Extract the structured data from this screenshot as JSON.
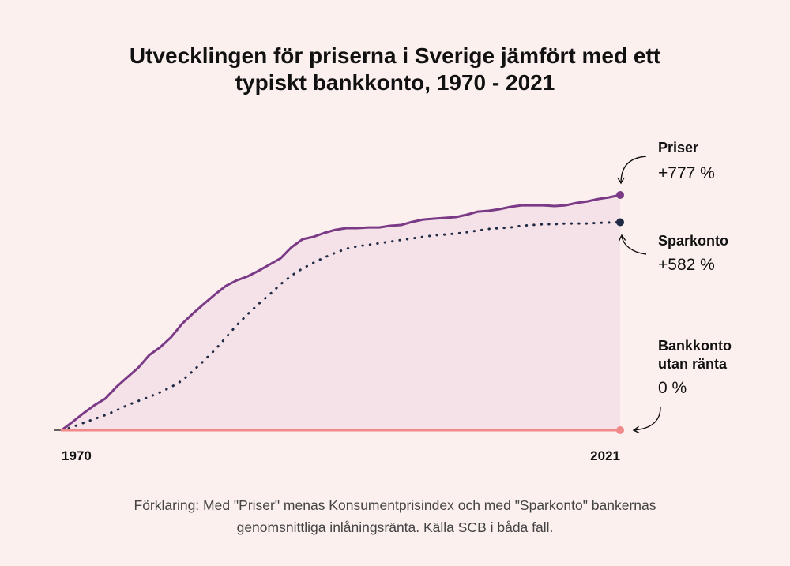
{
  "chart_data": {
    "type": "line",
    "title": "Utvecklingen för priserna i Sverige jämfört med ett typiskt bankkonto, 1970 - 2021",
    "footnote": "Förklaring: Med \"Priser\" menas Konsumentprisindex och med \"Sparkonto\" bankernas genomsnittliga inlåningsränta. Källa SCB i båda fall.",
    "x": [
      1970,
      1971,
      1972,
      1973,
      1974,
      1975,
      1976,
      1977,
      1978,
      1979,
      1980,
      1981,
      1982,
      1983,
      1984,
      1985,
      1986,
      1987,
      1988,
      1989,
      1990,
      1991,
      1992,
      1993,
      1994,
      1995,
      1996,
      1997,
      1998,
      1999,
      2000,
      2001,
      2002,
      2003,
      2004,
      2005,
      2006,
      2007,
      2008,
      2009,
      2010,
      2011,
      2012,
      2013,
      2014,
      2015,
      2016,
      2017,
      2018,
      2019,
      2020,
      2021
    ],
    "xlim": [
      1970,
      2021
    ],
    "xticks": [
      1970,
      2021
    ],
    "ylim": [
      0,
      900
    ],
    "log_scale": true,
    "grid": false,
    "series": [
      {
        "name": "Priser",
        "color": "#7b3a86",
        "style": "solid",
        "fill": "#f5e2e8",
        "values": [
          0,
          8,
          17,
          26,
          34,
          49,
          63,
          78,
          100,
          115,
          136,
          167,
          194,
          221,
          250,
          279,
          299,
          314,
          336,
          362,
          389,
          442,
          483,
          496,
          518,
          536,
          546,
          546,
          550,
          550,
          560,
          565,
          584,
          599,
          605,
          610,
          615,
          631,
          652,
          658,
          669,
          686,
          697,
          697,
          697,
          692,
          697,
          715,
          727,
          745,
          758,
          777
        ],
        "value_labels": [
          null,
          null,
          null,
          null,
          null,
          null,
          null,
          null,
          null,
          null,
          null,
          null,
          null,
          null,
          null,
          null,
          null,
          null,
          null,
          null,
          null,
          null,
          null,
          null,
          null,
          null,
          null,
          null,
          null,
          null,
          null,
          null,
          null,
          null,
          null,
          null,
          null,
          null,
          null,
          null,
          null,
          null,
          null,
          null,
          null,
          null,
          null,
          null,
          null,
          null,
          null,
          "+777 %"
        ]
      },
      {
        "name": "Sparkonto",
        "color": "#1f2a44",
        "style": "dotted",
        "values": [
          0,
          3,
          7,
          11,
          15,
          20,
          26,
          31,
          36,
          42,
          49,
          58,
          73,
          90,
          110,
          135,
          164,
          192,
          221,
          250,
          285,
          317,
          345,
          369,
          393,
          415,
          434,
          446,
          454,
          462,
          470,
          479,
          487,
          496,
          504,
          509,
          514,
          522,
          532,
          541,
          546,
          550,
          560,
          565,
          570,
          570,
          574,
          574,
          574,
          578,
          580,
          582
        ],
        "value_labels": [
          null,
          null,
          null,
          null,
          null,
          null,
          null,
          null,
          null,
          null,
          null,
          null,
          null,
          null,
          null,
          null,
          null,
          null,
          null,
          null,
          null,
          null,
          null,
          null,
          null,
          null,
          null,
          null,
          null,
          null,
          null,
          null,
          null,
          null,
          null,
          null,
          null,
          null,
          null,
          null,
          null,
          null,
          null,
          null,
          null,
          null,
          null,
          null,
          null,
          null,
          null,
          "+582 %"
        ]
      },
      {
        "name": "Bankkonto utan ränta",
        "color": "#f0898a",
        "style": "solid",
        "values": [
          0,
          0,
          0,
          0,
          0,
          0,
          0,
          0,
          0,
          0,
          0,
          0,
          0,
          0,
          0,
          0,
          0,
          0,
          0,
          0,
          0,
          0,
          0,
          0,
          0,
          0,
          0,
          0,
          0,
          0,
          0,
          0,
          0,
          0,
          0,
          0,
          0,
          0,
          0,
          0,
          0,
          0,
          0,
          0,
          0,
          0,
          0,
          0,
          0,
          0,
          0,
          0
        ],
        "value_labels": [
          null,
          null,
          null,
          null,
          null,
          null,
          null,
          null,
          null,
          null,
          null,
          null,
          null,
          null,
          null,
          null,
          null,
          null,
          null,
          null,
          null,
          null,
          null,
          null,
          null,
          null,
          null,
          null,
          null,
          null,
          null,
          null,
          null,
          null,
          null,
          null,
          null,
          null,
          null,
          null,
          null,
          null,
          null,
          null,
          null,
          null,
          null,
          null,
          null,
          null,
          null,
          "0 %"
        ]
      }
    ]
  }
}
